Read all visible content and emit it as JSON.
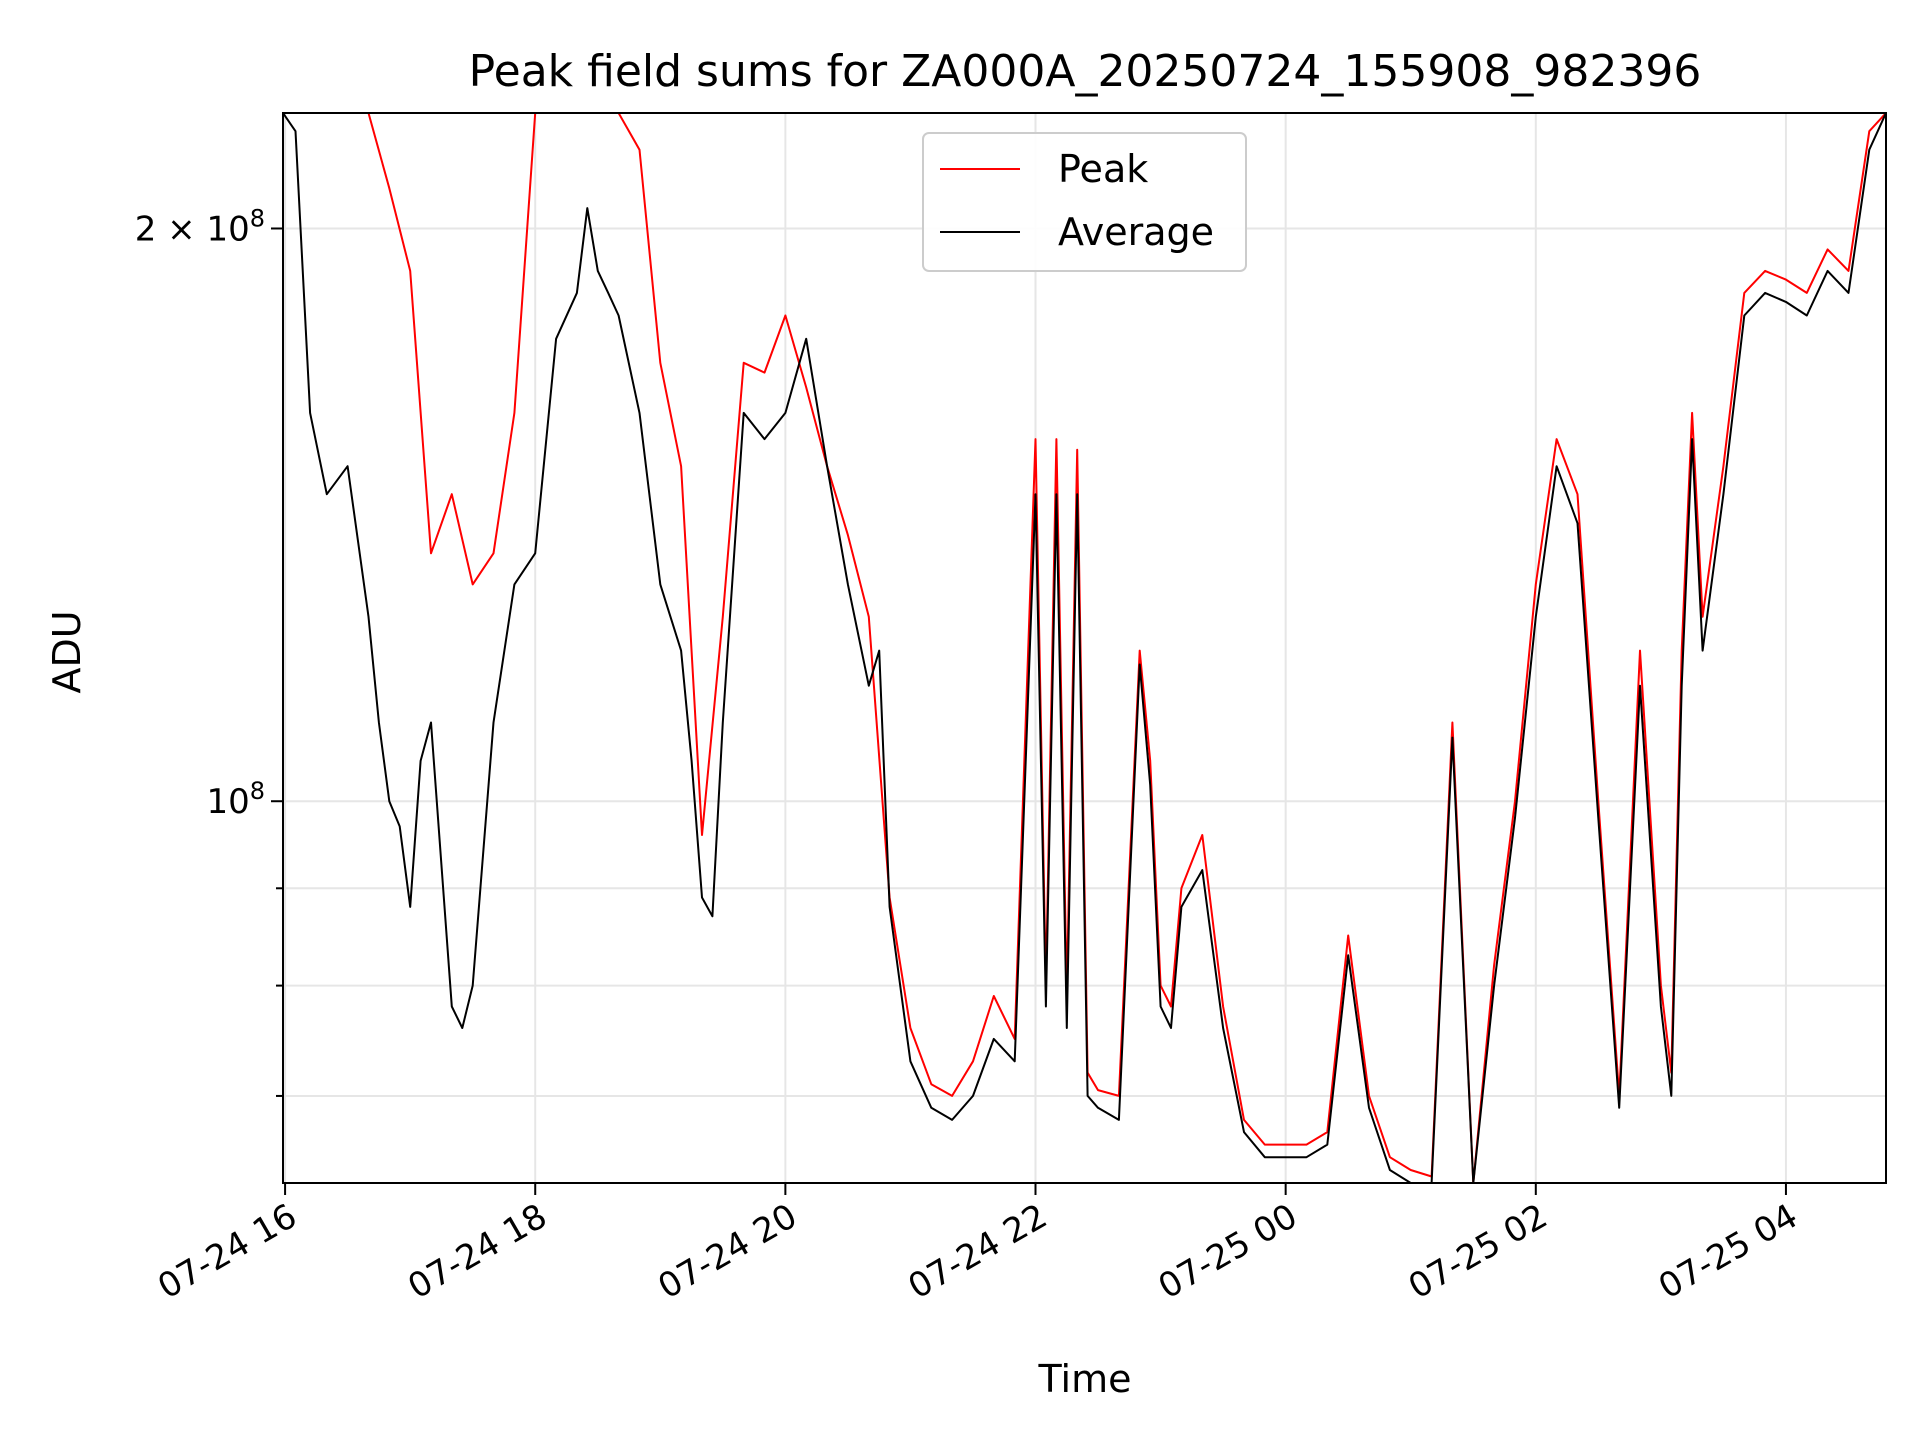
{
  "chart_data": {
    "type": "line",
    "title": "Peak field sums for ZA000A_20250724_155908_982396",
    "xlabel": "Time",
    "ylabel": "ADU",
    "yscale": "log",
    "xlim": [
      "2025-07-24T15:59",
      "2025-07-25T04:48"
    ],
    "ylim": [
      63000000.0,
      230000000.0
    ],
    "grid": true,
    "legend_position": "upper-center",
    "x_tick_labels": [
      "07-24 16",
      "07-24 18",
      "07-24 20",
      "07-24 22",
      "07-25 00",
      "07-25 02",
      "07-25 04"
    ],
    "x_tick_values": [
      "2025-07-24T16:00",
      "2025-07-24T18:00",
      "2025-07-24T20:00",
      "2025-07-24T22:00",
      "2025-07-25T00:00",
      "2025-07-25T02:00",
      "2025-07-25T04:00"
    ],
    "y_tick_labels": [
      {
        "label": "10",
        "exp": "8",
        "value": 100000000
      },
      {
        "label": "2 × 10",
        "exp": "8",
        "value": 200000000
      }
    ],
    "y_minor_tick_values": [
      70000000,
      80000000,
      90000000
    ],
    "series": [
      {
        "name": "Peak",
        "color": "#ff0000",
        "x": [
          "2025-07-24T15:59",
          "2025-07-24T16:10",
          "2025-07-24T16:20",
          "2025-07-24T16:30",
          "2025-07-24T16:40",
          "2025-07-24T16:50",
          "2025-07-24T17:00",
          "2025-07-24T17:10",
          "2025-07-24T17:20",
          "2025-07-24T17:30",
          "2025-07-24T17:40",
          "2025-07-24T17:50",
          "2025-07-24T18:00",
          "2025-07-24T18:10",
          "2025-07-24T18:20",
          "2025-07-24T18:30",
          "2025-07-24T18:40",
          "2025-07-24T18:50",
          "2025-07-24T19:00",
          "2025-07-24T19:10",
          "2025-07-24T19:20",
          "2025-07-24T19:30",
          "2025-07-24T19:40",
          "2025-07-24T19:50",
          "2025-07-24T20:00",
          "2025-07-24T20:10",
          "2025-07-24T20:20",
          "2025-07-24T20:30",
          "2025-07-24T20:40",
          "2025-07-24T20:50",
          "2025-07-24T21:00",
          "2025-07-24T21:10",
          "2025-07-24T21:20",
          "2025-07-24T21:30",
          "2025-07-24T21:40",
          "2025-07-24T21:50",
          "2025-07-24T22:00",
          "2025-07-24T22:05",
          "2025-07-24T22:10",
          "2025-07-24T22:15",
          "2025-07-24T22:20",
          "2025-07-24T22:25",
          "2025-07-24T22:30",
          "2025-07-24T22:40",
          "2025-07-24T22:50",
          "2025-07-24T22:55",
          "2025-07-24T23:00",
          "2025-07-24T23:05",
          "2025-07-24T23:10",
          "2025-07-24T23:20",
          "2025-07-24T23:30",
          "2025-07-24T23:40",
          "2025-07-24T23:50",
          "2025-07-25T00:00",
          "2025-07-25T00:10",
          "2025-07-25T00:20",
          "2025-07-25T00:30",
          "2025-07-25T00:40",
          "2025-07-25T00:50",
          "2025-07-25T01:00",
          "2025-07-25T01:10",
          "2025-07-25T01:20",
          "2025-07-25T01:30",
          "2025-07-25T01:40",
          "2025-07-25T01:50",
          "2025-07-25T02:00",
          "2025-07-25T02:10",
          "2025-07-25T02:20",
          "2025-07-25T02:30",
          "2025-07-25T02:40",
          "2025-07-25T02:50",
          "2025-07-25T03:00",
          "2025-07-25T03:05",
          "2025-07-25T03:10",
          "2025-07-25T03:15",
          "2025-07-25T03:20",
          "2025-07-25T03:30",
          "2025-07-25T03:40",
          "2025-07-25T03:50",
          "2025-07-25T04:00",
          "2025-07-25T04:10",
          "2025-07-25T04:20",
          "2025-07-25T04:30",
          "2025-07-25T04:40",
          "2025-07-25T04:48"
        ],
        "values": [
          230000000.0,
          230000000.0,
          230000000.0,
          230000000.0,
          230000000.0,
          210000000.0,
          190000000.0,
          135000000.0,
          145000000.0,
          130000000.0,
          135000000.0,
          160000000.0,
          230000000.0,
          230000000.0,
          230000000.0,
          230000000.0,
          230000000.0,
          220000000.0,
          170000000.0,
          150000000.0,
          96000000.0,
          125000000.0,
          170000000.0,
          168000000.0,
          180000000.0,
          165000000.0,
          150000000.0,
          138000000.0,
          125000000.0,
          89000000.0,
          76000000.0,
          71000000.0,
          70000000.0,
          73000000.0,
          79000000.0,
          75000000.0,
          155000000.0,
          80000000.0,
          155000000.0,
          79000000.0,
          153000000.0,
          72000000.0,
          70500000.0,
          70000000.0,
          120000000.0,
          105000000.0,
          80000000.0,
          78000000.0,
          90000000.0,
          96000000.0,
          78000000.0,
          68000000.0,
          66000000.0,
          66000000.0,
          66000000.0,
          67000000.0,
          85000000.0,
          70000000.0,
          65000000.0,
          64000000.0,
          63500000.0,
          110000000.0,
          63000000.0,
          82000000.0,
          100000000.0,
          130000000.0,
          155000000.0,
          145000000.0,
          100000000.0,
          70000000.0,
          120000000.0,
          80000000.0,
          72000000.0,
          120000000.0,
          160000000.0,
          125000000.0,
          150000000.0,
          185000000.0,
          190000000.0,
          188000000.0,
          185000000.0,
          195000000.0,
          190000000.0,
          225000000.0,
          230000000.0
        ]
      },
      {
        "name": "Average",
        "color": "#000000",
        "x": [
          "2025-07-24T15:59",
          "2025-07-24T16:05",
          "2025-07-24T16:12",
          "2025-07-24T16:20",
          "2025-07-24T16:30",
          "2025-07-24T16:40",
          "2025-07-24T16:45",
          "2025-07-24T16:50",
          "2025-07-24T16:55",
          "2025-07-24T17:00",
          "2025-07-24T17:05",
          "2025-07-24T17:10",
          "2025-07-24T17:20",
          "2025-07-24T17:25",
          "2025-07-24T17:30",
          "2025-07-24T17:40",
          "2025-07-24T17:50",
          "2025-07-24T18:00",
          "2025-07-24T18:10",
          "2025-07-24T18:20",
          "2025-07-24T18:25",
          "2025-07-24T18:30",
          "2025-07-24T18:35",
          "2025-07-24T18:40",
          "2025-07-24T18:50",
          "2025-07-24T19:00",
          "2025-07-24T19:10",
          "2025-07-24T19:15",
          "2025-07-24T19:20",
          "2025-07-24T19:25",
          "2025-07-24T19:30",
          "2025-07-24T19:40",
          "2025-07-24T19:50",
          "2025-07-24T20:00",
          "2025-07-24T20:10",
          "2025-07-24T20:20",
          "2025-07-24T20:30",
          "2025-07-24T20:40",
          "2025-07-24T20:45",
          "2025-07-24T20:50",
          "2025-07-24T21:00",
          "2025-07-24T21:10",
          "2025-07-24T21:20",
          "2025-07-24T21:30",
          "2025-07-24T21:40",
          "2025-07-24T21:50",
          "2025-07-24T22:00",
          "2025-07-24T22:05",
          "2025-07-24T22:10",
          "2025-07-24T22:15",
          "2025-07-24T22:20",
          "2025-07-24T22:25",
          "2025-07-24T22:30",
          "2025-07-24T22:40",
          "2025-07-24T22:50",
          "2025-07-24T22:55",
          "2025-07-24T23:00",
          "2025-07-24T23:05",
          "2025-07-24T23:10",
          "2025-07-24T23:20",
          "2025-07-24T23:30",
          "2025-07-24T23:40",
          "2025-07-24T23:50",
          "2025-07-25T00:00",
          "2025-07-25T00:10",
          "2025-07-25T00:20",
          "2025-07-25T00:30",
          "2025-07-25T00:40",
          "2025-07-25T00:50",
          "2025-07-25T01:00",
          "2025-07-25T01:10",
          "2025-07-25T01:20",
          "2025-07-25T01:30",
          "2025-07-25T01:40",
          "2025-07-25T01:50",
          "2025-07-25T02:00",
          "2025-07-25T02:10",
          "2025-07-25T02:20",
          "2025-07-25T02:30",
          "2025-07-25T02:40",
          "2025-07-25T02:50",
          "2025-07-25T03:00",
          "2025-07-25T03:05",
          "2025-07-25T03:10",
          "2025-07-25T03:15",
          "2025-07-25T03:20",
          "2025-07-25T03:30",
          "2025-07-25T03:40",
          "2025-07-25T03:50",
          "2025-07-25T04:00",
          "2025-07-25T04:10",
          "2025-07-25T04:20",
          "2025-07-25T04:30",
          "2025-07-25T04:40",
          "2025-07-25T04:48"
        ],
        "values": [
          230000000.0,
          225000000.0,
          160000000.0,
          145000000.0,
          150000000.0,
          125000000.0,
          110000000.0,
          100000000.0,
          97000000.0,
          88000000.0,
          105000000.0,
          110000000.0,
          78000000.0,
          76000000.0,
          80000000.0,
          110000000.0,
          130000000.0,
          135000000.0,
          175000000.0,
          185000000.0,
          205000000.0,
          190000000.0,
          185000000.0,
          180000000.0,
          160000000.0,
          130000000.0,
          120000000.0,
          105000000.0,
          89000000.0,
          87000000.0,
          110000000.0,
          160000000.0,
          155000000.0,
          160000000.0,
          175000000.0,
          150000000.0,
          130000000.0,
          115000000.0,
          120000000.0,
          88000000.0,
          73000000.0,
          69000000.0,
          68000000.0,
          70000000.0,
          75000000.0,
          73000000.0,
          145000000.0,
          78000000.0,
          145000000.0,
          76000000.0,
          145000000.0,
          70000000.0,
          69000000.0,
          68000000.0,
          118000000.0,
          102000000.0,
          78000000.0,
          76000000.0,
          88000000.0,
          92000000.0,
          76000000.0,
          67000000.0,
          65000000.0,
          65000000.0,
          65000000.0,
          66000000.0,
          83000000.0,
          69000000.0,
          64000000.0,
          63000000.0,
          63000000.0,
          108000000.0,
          63000000.0,
          80000000.0,
          98000000.0,
          125000000.0,
          150000000.0,
          140000000.0,
          98000000.0,
          69000000.0,
          115000000.0,
          78000000.0,
          70000000.0,
          115000000.0,
          155000000.0,
          120000000.0,
          145000000.0,
          180000000.0,
          185000000.0,
          183000000.0,
          180000000.0,
          190000000.0,
          185000000.0,
          220000000.0,
          230000000.0
        ]
      }
    ]
  }
}
